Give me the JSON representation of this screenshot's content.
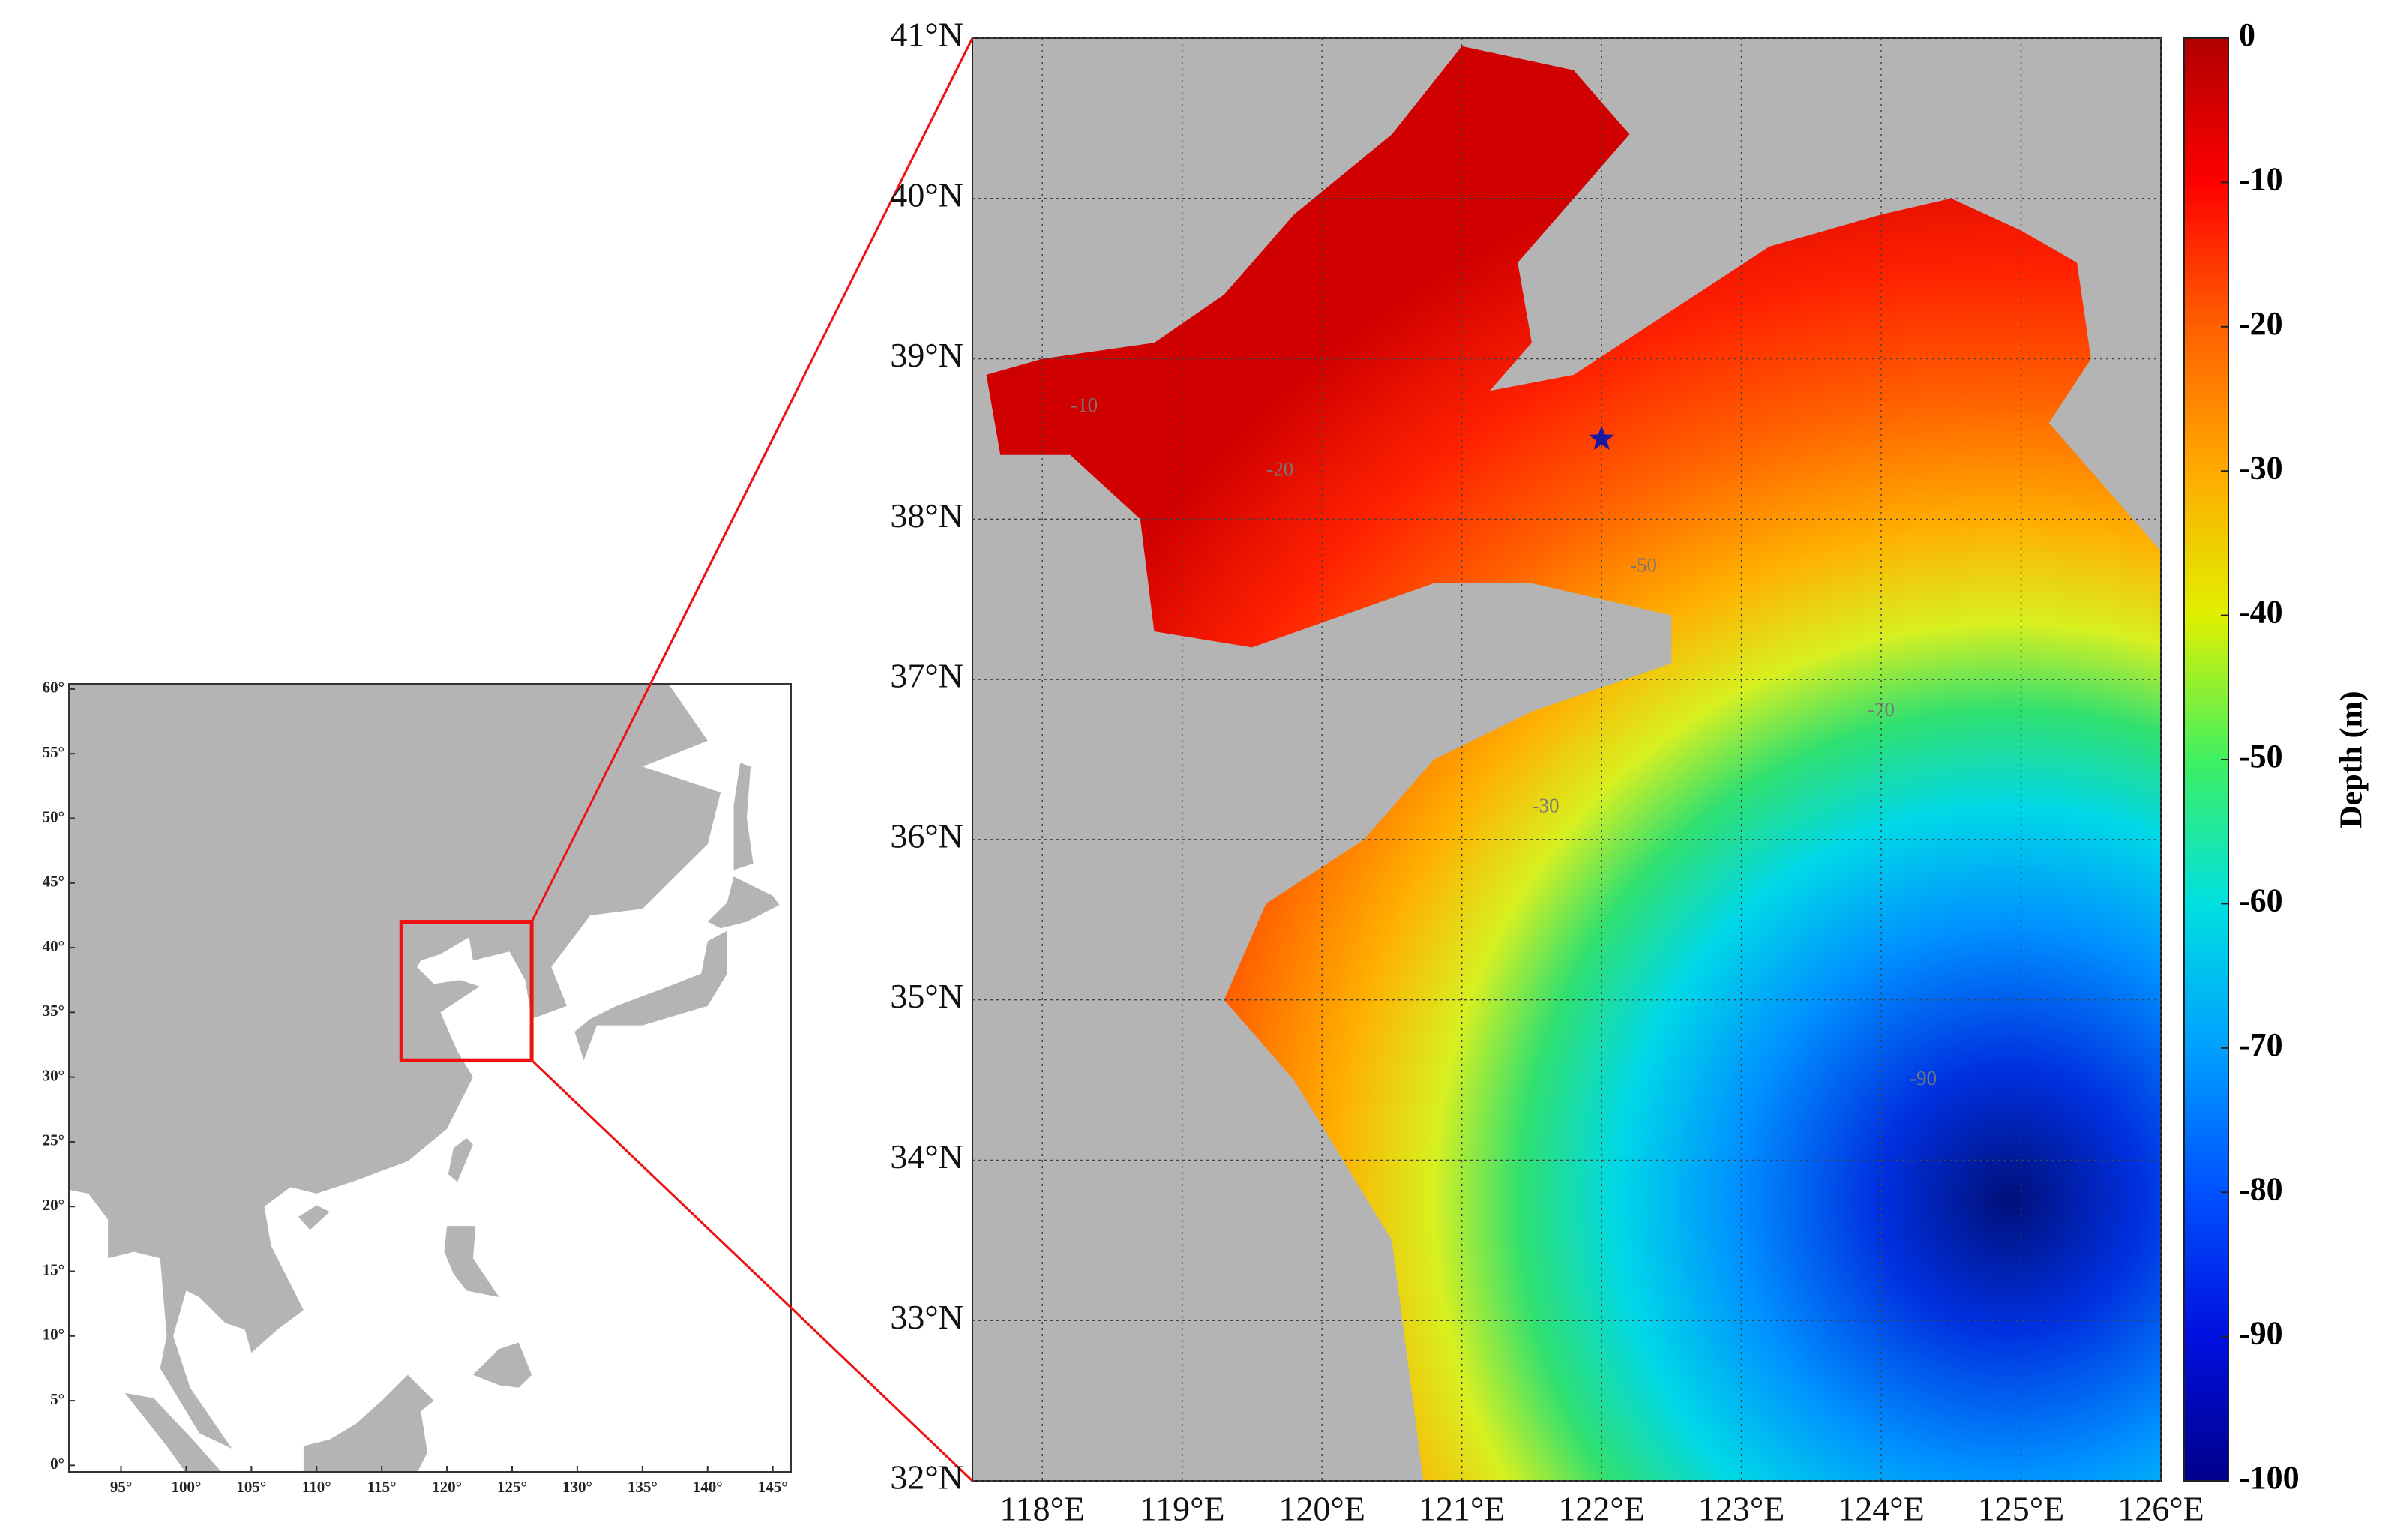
{
  "overview_map": {
    "xlim": [
      91,
      146.4
    ],
    "ylim": [
      -0.5,
      60.4
    ],
    "xticks": [
      {
        "value": 95,
        "label": "95°"
      },
      {
        "value": 100,
        "label": "100°"
      },
      {
        "value": 105,
        "label": "105°"
      },
      {
        "value": 110,
        "label": "110°"
      },
      {
        "value": 115,
        "label": "115°"
      },
      {
        "value": 120,
        "label": "120°"
      },
      {
        "value": 125,
        "label": "125°"
      },
      {
        "value": 130,
        "label": "130°"
      },
      {
        "value": 135,
        "label": "135°"
      },
      {
        "value": 140,
        "label": "140°"
      },
      {
        "value": 145,
        "label": "145°"
      }
    ],
    "yticks": [
      {
        "value": 0,
        "label": "0°"
      },
      {
        "value": 5,
        "label": "5°"
      },
      {
        "value": 10,
        "label": "10°"
      },
      {
        "value": 15,
        "label": "15°"
      },
      {
        "value": 20,
        "label": "20°"
      },
      {
        "value": 25,
        "label": "25°"
      },
      {
        "value": 30,
        "label": "30°"
      },
      {
        "value": 35,
        "label": "35°"
      },
      {
        "value": 40,
        "label": "40°"
      },
      {
        "value": 45,
        "label": "45°"
      },
      {
        "value": 50,
        "label": "50°"
      },
      {
        "value": 55,
        "label": "55°"
      },
      {
        "value": 60,
        "label": "60°"
      }
    ],
    "region_box": {
      "lon": [
        116.5,
        126.5
      ],
      "lat": [
        31.3,
        42
      ]
    }
  },
  "detail_map": {
    "xlim": [
      117.5,
      126
    ],
    "ylim": [
      32,
      41
    ],
    "xticks": [
      {
        "value": 118,
        "label": "118°E"
      },
      {
        "value": 119,
        "label": "119°E"
      },
      {
        "value": 120,
        "label": "120°E"
      },
      {
        "value": 121,
        "label": "121°E"
      },
      {
        "value": 122,
        "label": "122°E"
      },
      {
        "value": 123,
        "label": "123°E"
      },
      {
        "value": 124,
        "label": "124°E"
      },
      {
        "value": 125,
        "label": "125°E"
      },
      {
        "value": 126,
        "label": "126°E"
      }
    ],
    "yticks": [
      {
        "value": 32,
        "label": "32°N"
      },
      {
        "value": 33,
        "label": "33°N"
      },
      {
        "value": 34,
        "label": "34°N"
      },
      {
        "value": 35,
        "label": "35°N"
      },
      {
        "value": 36,
        "label": "36°N"
      },
      {
        "value": 37,
        "label": "37°N"
      },
      {
        "value": 38,
        "label": "38°N"
      },
      {
        "value": 39,
        "label": "39°N"
      },
      {
        "value": 40,
        "label": "40°N"
      },
      {
        "value": 41,
        "label": "41°N"
      }
    ],
    "grid": true,
    "station": {
      "lon": 122,
      "lat": 38.5,
      "color": "#1a1aa0"
    },
    "contour_levels": [
      -10,
      -20,
      -30,
      -50,
      -70,
      -90
    ]
  },
  "colorbar": {
    "label": "Depth (m)",
    "lim": [
      -100,
      0
    ],
    "ticks": [
      0,
      -10,
      -20,
      -30,
      -40,
      -50,
      -60,
      -70,
      -80,
      -90,
      -100
    ]
  }
}
